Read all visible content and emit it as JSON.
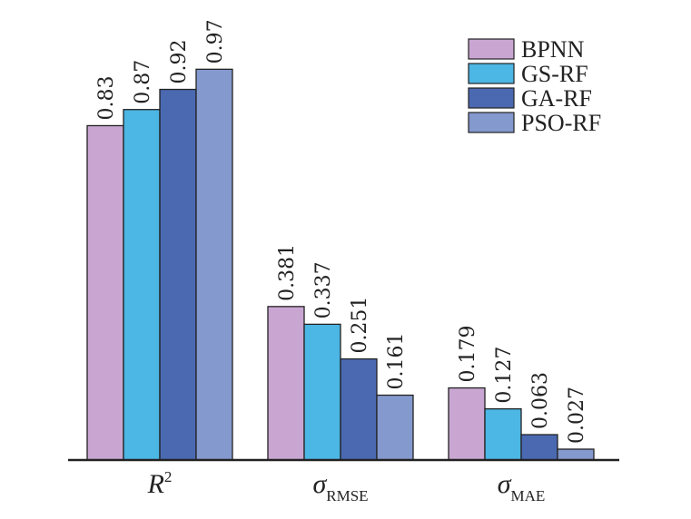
{
  "chart_data": {
    "type": "bar",
    "categories": [
      {
        "main": "R",
        "sup": "2",
        "sub": ""
      },
      {
        "main": "σ",
        "sup": "",
        "sub": "RMSE"
      },
      {
        "main": "σ",
        "sup": "",
        "sub": "MAE"
      }
    ],
    "series": [
      {
        "name": "BPNN",
        "color": "#c9a6d2",
        "values": [
          0.83,
          0.381,
          0.179
        ],
        "labels": [
          "0.83",
          "0.381",
          "0.179"
        ]
      },
      {
        "name": "GS-RF",
        "color": "#4cb6e4",
        "values": [
          0.87,
          0.337,
          0.127
        ],
        "labels": [
          "0.87",
          "0.337",
          "0.127"
        ]
      },
      {
        "name": "GA-RF",
        "color": "#4a69b1",
        "values": [
          0.92,
          0.251,
          0.063
        ],
        "labels": [
          "0.92",
          "0.251",
          "0.063"
        ]
      },
      {
        "name": "PSO-RF",
        "color": "#8499cd",
        "values": [
          0.97,
          0.161,
          0.027
        ],
        "labels": [
          "0.97",
          "0.161",
          "0.027"
        ]
      }
    ],
    "ylim": [
      0,
      1.0
    ],
    "grid": false,
    "legend_position": "top-right",
    "value_labels": true,
    "value_label_orientation": "vertical"
  }
}
